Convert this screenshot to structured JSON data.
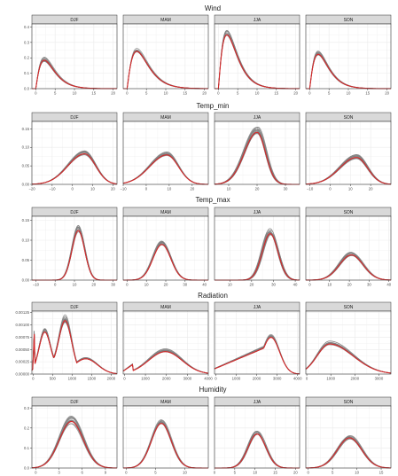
{
  "colors": {
    "ensemble": "#7f7f7f",
    "observed": "#d62728",
    "strip_bg": "#d9d9d9",
    "grid": "#ebebeb",
    "panel_border": "#333333"
  },
  "seasons": [
    "DJF",
    "MAM",
    "JJA",
    "SON"
  ],
  "chart_data": [
    {
      "type": "line",
      "title": "Wind",
      "shape": "skew",
      "ylim": [
        0,
        0.42
      ],
      "yticks": [
        "0.0",
        "0.1",
        "0.2",
        "0.3",
        "0.4"
      ],
      "ytick_values": [
        0,
        0.1,
        0.2,
        0.3,
        0.4
      ],
      "grid": true,
      "panels": [
        {
          "season": "DJF",
          "xlim": [
            -1,
            21
          ],
          "xticks": [
            "0",
            "5",
            "10",
            "15",
            "20"
          ],
          "xtick_values": [
            0,
            5,
            10,
            15,
            20
          ],
          "peak_x": 2.2,
          "peak_y": 0.19,
          "spread": 3.2,
          "ens_spread": 0.015
        },
        {
          "season": "MAM",
          "xlim": [
            -1,
            21
          ],
          "xticks": [
            "0",
            "5",
            "10",
            "15",
            "20"
          ],
          "xtick_values": [
            0,
            5,
            10,
            15,
            20
          ],
          "peak_x": 2.5,
          "peak_y": 0.25,
          "spread": 3.0,
          "ens_spread": 0.012
        },
        {
          "season": "JJA",
          "xlim": [
            -1,
            21
          ],
          "xticks": [
            "0",
            "5",
            "10",
            "15",
            "20"
          ],
          "xtick_values": [
            0,
            5,
            10,
            15,
            20
          ],
          "peak_x": 2.2,
          "peak_y": 0.36,
          "spread": 2.0,
          "ens_spread": 0.02
        },
        {
          "season": "SON",
          "xlim": [
            -1,
            21
          ],
          "xticks": [
            "0",
            "5",
            "10",
            "15",
            "20"
          ],
          "xtick_values": [
            0,
            5,
            10,
            15,
            20
          ],
          "peak_x": 2.2,
          "peak_y": 0.23,
          "spread": 2.8,
          "ens_spread": 0.015
        }
      ]
    },
    {
      "type": "line",
      "title": "Temp_min",
      "shape": "left-skew",
      "ylim": [
        0,
        0.17
      ],
      "yticks": [
        "0.00",
        "0.05",
        "0.10",
        "0.15"
      ],
      "ytick_values": [
        0,
        0.05,
        0.1,
        0.15
      ],
      "grid": true,
      "panels": [
        {
          "season": "DJF",
          "xlim": [
            -20,
            22
          ],
          "xticks": [
            "−20",
            "−10",
            "0",
            "10",
            "20"
          ],
          "xtick_values": [
            -20,
            -10,
            0,
            10,
            20
          ],
          "peak_x": 6,
          "peak_y": 0.085,
          "spread": 5.5,
          "ens_spread": 0.006
        },
        {
          "season": "MAM",
          "xlim": [
            -10,
            27
          ],
          "xticks": [
            "−10",
            "0",
            "10",
            "20"
          ],
          "xtick_values": [
            -10,
            0,
            10,
            20
          ],
          "peak_x": 9,
          "peak_y": 0.082,
          "spread": 5.0,
          "ens_spread": 0.006
        },
        {
          "season": "JJA",
          "xlim": [
            5,
            35
          ],
          "xticks": [
            "10",
            "20",
            "30"
          ],
          "xtick_values": [
            10,
            20,
            30
          ],
          "peak_x": 20,
          "peak_y": 0.145,
          "spread": 3.0,
          "ens_spread": 0.01
        },
        {
          "season": "SON",
          "xlim": [
            -12,
            30
          ],
          "xticks": [
            "−10",
            "0",
            "10",
            "20"
          ],
          "xtick_values": [
            -10,
            0,
            10,
            20
          ],
          "peak_x": 13,
          "peak_y": 0.075,
          "spread": 5.5,
          "ens_spread": 0.006
        }
      ]
    },
    {
      "type": "line",
      "title": "Temp_max",
      "shape": "normal",
      "ylim": [
        0,
        0.16
      ],
      "yticks": [
        "0.00",
        "0.05",
        "0.10",
        "0.15"
      ],
      "ytick_values": [
        0,
        0.05,
        0.1,
        0.15
      ],
      "grid": true,
      "panels": [
        {
          "season": "DJF",
          "xlim": [
            -12,
            32
          ],
          "xticks": [
            "−10",
            "0",
            "10",
            "20",
            "30"
          ],
          "xtick_values": [
            -10,
            0,
            10,
            20,
            30
          ],
          "peak_x": 12,
          "peak_y": 0.128,
          "spread": 3.3,
          "ens_spread": 0.01
        },
        {
          "season": "MAM",
          "xlim": [
            -2,
            42
          ],
          "xticks": [
            "0",
            "10",
            "20",
            "30",
            "40"
          ],
          "xtick_values": [
            0,
            10,
            20,
            30,
            40
          ],
          "peak_x": 18,
          "peak_y": 0.092,
          "spread": 4.6,
          "ens_spread": 0.006
        },
        {
          "season": "JJA",
          "xlim": [
            3,
            42
          ],
          "xticks": [
            "10",
            "20",
            "30",
            "40"
          ],
          "xtick_values": [
            10,
            20,
            30,
            40
          ],
          "peak_x": 28.5,
          "peak_y": 0.12,
          "spread": 3.6,
          "ens_spread": 0.01
        },
        {
          "season": "SON",
          "xlim": [
            -2,
            41
          ],
          "xticks": [
            "0",
            "10",
            "20",
            "30",
            "40"
          ],
          "xtick_values": [
            0,
            10,
            20,
            30,
            40
          ],
          "peak_x": 21,
          "peak_y": 0.065,
          "spread": 6.0,
          "ens_spread": 0.006
        }
      ]
    },
    {
      "type": "line",
      "title": "Radiation",
      "shape": "mixed",
      "ylim": [
        0,
        0.00128
      ],
      "yticks": [
        "0.00000",
        "0.00025",
        "0.00050",
        "0.00075",
        "0.00100",
        "0.00125"
      ],
      "ytick_values": [
        0,
        0.00025,
        0.0005,
        0.00075,
        0.001,
        0.00125
      ],
      "grid": true,
      "panels": [
        {
          "season": "DJF",
          "xlim": [
            -30,
            2150
          ],
          "xticks": [
            "0",
            "500",
            "1000",
            "1500",
            "2000"
          ],
          "xtick_values": [
            0,
            500,
            1000,
            1500,
            2000
          ],
          "mode": "bimodal",
          "ens_spread": 6e-05
        },
        {
          "season": "MAM",
          "xlim": [
            -60,
            4000
          ],
          "xticks": [
            "0",
            "1000",
            "2000",
            "3000",
            "4000"
          ],
          "xtick_values": [
            0,
            1000,
            2000,
            3000,
            4000
          ],
          "mode": "broad",
          "peak_x": 1950,
          "peak_y": 0.00047,
          "spread": 800,
          "ens_spread": 3e-05
        },
        {
          "season": "JJA",
          "xlim": [
            -60,
            4100
          ],
          "xticks": [
            "0",
            "1000",
            "2000",
            "3000",
            "4000"
          ],
          "xtick_values": [
            0,
            1000,
            2000,
            3000,
            4000
          ],
          "mode": "right",
          "peak_x": 2700,
          "peak_y": 0.00077,
          "spread": 420,
          "ens_spread": 4e-05
        },
        {
          "season": "SON",
          "xlim": [
            -40,
            3500
          ],
          "xticks": [
            "0",
            "1000",
            "2000",
            "3000"
          ],
          "xtick_values": [
            0,
            1000,
            2000,
            3000
          ],
          "mode": "left",
          "peak_x": 950,
          "peak_y": 0.00063,
          "spread": 650,
          "ens_spread": 3e-05
        }
      ]
    },
    {
      "type": "line",
      "title": "Humidity",
      "shape": "normal",
      "ylim": [
        0,
        0.31
      ],
      "yticks": [
        "0.0",
        "0.1",
        "0.2",
        "0.3"
      ],
      "ytick_values": [
        0,
        0.1,
        0.2,
        0.3
      ],
      "grid": true,
      "panels": [
        {
          "season": "DJF",
          "xlim": [
            -0.5,
            10.5
          ],
          "xticks": [
            "0",
            "3",
            "6",
            "9"
          ],
          "xtick_values": [
            0,
            3,
            6,
            9
          ],
          "peak_x": 4.6,
          "peak_y": 0.24,
          "spread": 1.55,
          "ens_spread": 0.02
        },
        {
          "season": "MAM",
          "xlim": [
            -0.5,
            14
          ],
          "xticks": [
            "0",
            "5",
            "10"
          ],
          "xtick_values": [
            0,
            5,
            10
          ],
          "peak_x": 6,
          "peak_y": 0.23,
          "spread": 1.7,
          "ens_spread": 0.012
        },
        {
          "season": "JJA",
          "xlim": [
            0,
            21
          ],
          "xticks": [
            "0",
            "5",
            "10",
            "15",
            "20"
          ],
          "xtick_values": [
            0,
            5,
            10,
            15,
            20
          ],
          "peak_x": 10.5,
          "peak_y": 0.175,
          "spread": 2.2,
          "ens_spread": 0.01
        },
        {
          "season": "SON",
          "xlim": [
            -0.5,
            17
          ],
          "xticks": [
            "0",
            "5",
            "10",
            "15"
          ],
          "xtick_values": [
            0,
            5,
            10,
            15
          ],
          "peak_x": 8.5,
          "peak_y": 0.155,
          "spread": 2.5,
          "ens_spread": 0.01
        }
      ]
    }
  ]
}
